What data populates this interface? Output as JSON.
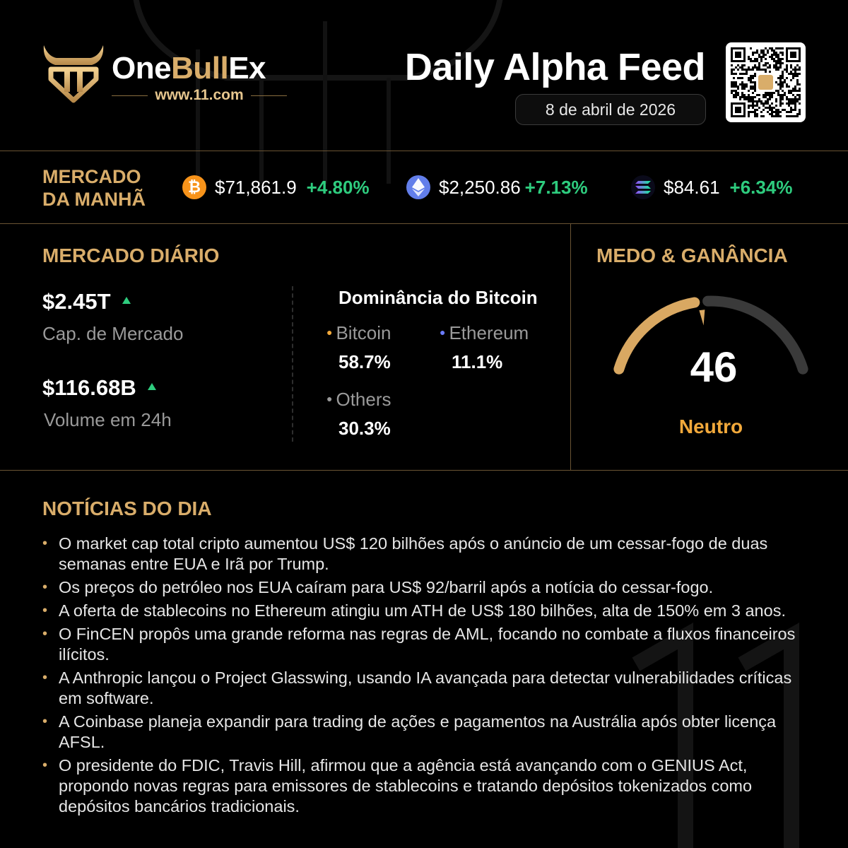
{
  "header": {
    "brand_one": "One",
    "brand_bull": "Bull",
    "brand_ex": "Ex",
    "url": "www.11.com",
    "title": "Daily Alpha Feed",
    "date": "8 de abril de 2026",
    "logo_icon": "bull-head-logo-icon",
    "qr_icon": "qr-code-icon"
  },
  "morning_market": {
    "title_line1": "MERCADO",
    "title_line2": "DA MANHÃ",
    "coins": [
      {
        "icon": "bitcoin-icon",
        "price": "$71,861.9",
        "change": "+4.80%",
        "color": "#f7931a"
      },
      {
        "icon": "ethereum-icon",
        "price": "$2,250.86",
        "change": "+7.13%",
        "color": "#627eea"
      },
      {
        "icon": "solana-icon",
        "price": "$84.61",
        "change": "+6.34%",
        "color": "#14f195"
      }
    ]
  },
  "daily_market": {
    "title": "MERCADO DIÁRIO",
    "market_cap_value": "$2.45T",
    "market_cap_label": "Cap. de Mercado",
    "volume_value": "$116.68B",
    "volume_label": "Volume em 24h",
    "dominance_title": "Dominância do Bitcoin",
    "dominance": [
      {
        "name": "Bitcoin",
        "value": "58.7%",
        "dot_color": "#f2a93b"
      },
      {
        "name": "Ethereum",
        "value": "11.1%",
        "dot_color": "#6b7cff"
      },
      {
        "name": "Others",
        "value": "30.3%",
        "dot_color": "#9a9a9a"
      }
    ]
  },
  "fear_greed": {
    "title": "MEDO & GANÂNCIA",
    "value": "46",
    "level": 46,
    "label": "Neutro",
    "gold_color": "#d9a862",
    "track_color": "#3a3a3a"
  },
  "news": {
    "title": "NOTÍCIAS DO DIA",
    "items": [
      "O market cap total cripto aumentou US$ 120 bilhões após o anúncio de um cessar-fogo de duas semanas entre EUA e Irã por Trump.",
      "Os preços do petróleo nos EUA caíram para US$ 92/barril após a notícia do cessar-fogo.",
      "A oferta de stablecoins no Ethereum atingiu um ATH de US$ 180 bilhões, alta de 150% em 3 anos.",
      "O FinCEN propôs uma grande reforma nas regras de AML, focando no combate a fluxos financeiros ilícitos.",
      "A Anthropic lançou o Project Glasswing, usando IA avançada para detectar vulnerabilidades críticas em software.",
      "A Coinbase planeja expandir para trading de ações e pagamentos na Austrália após obter licença AFSL.",
      "O presidente do FDIC, Travis Hill, afirmou que a agência está avançando com o GENIUS Act, propondo novas regras para emissores de stablecoins e tratando depósitos tokenizados como depósitos bancários tradicionais."
    ]
  }
}
